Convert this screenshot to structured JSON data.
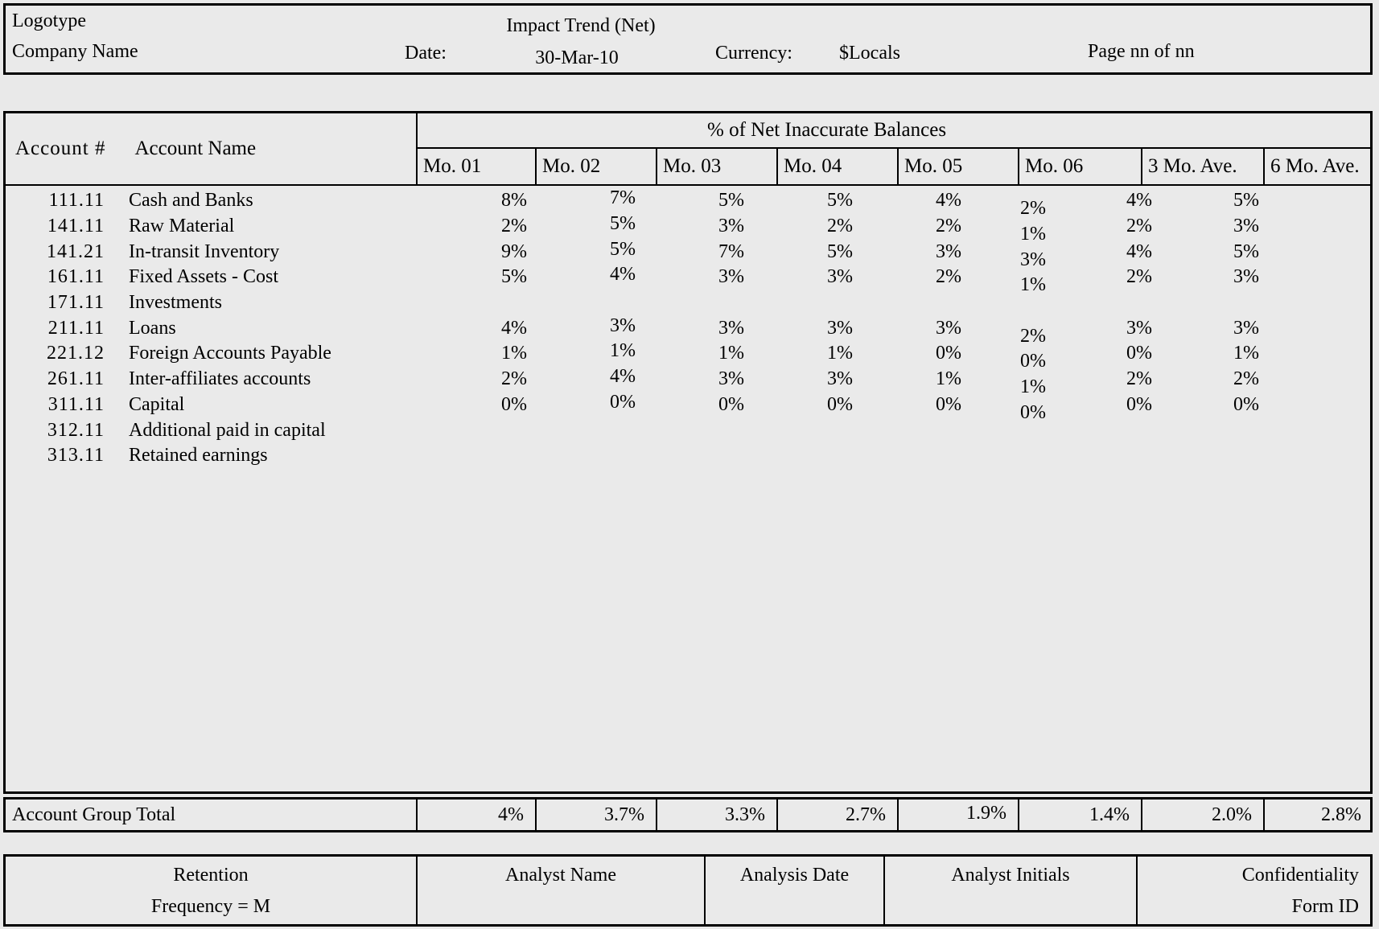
{
  "header": {
    "logotype": "Logotype",
    "company_name": "Company Name",
    "title": "Impact Trend (Net)",
    "date_label": "Date:",
    "date_value": "30-Mar-10",
    "currency_label": "Currency:",
    "currency_value": "$Locals",
    "page_label": "Page nn of nn"
  },
  "table": {
    "account_number_header": "Account #",
    "account_name_header": "Account Name",
    "group_header": "% of Net Inaccurate Balances",
    "month_headers": [
      "Mo. 01",
      "Mo. 02",
      "Mo. 03",
      "Mo. 04",
      "Mo. 05",
      "Mo. 06",
      "3 Mo. Ave.",
      "6 Mo. Ave."
    ],
    "rows": [
      {
        "account": "111.11",
        "name": "Cash and Banks",
        "values": [
          "8%",
          "7%",
          "5%",
          "5%",
          "4%",
          "2%",
          "4%",
          "5%"
        ]
      },
      {
        "account": "141.11",
        "name": "Raw Material",
        "values": [
          "2%",
          "5%",
          "3%",
          "2%",
          "2%",
          "1%",
          "2%",
          "3%"
        ]
      },
      {
        "account": "141.21",
        "name": "In-transit Inventory",
        "values": [
          "9%",
          "5%",
          "7%",
          "5%",
          "3%",
          "3%",
          "4%",
          "5%"
        ]
      },
      {
        "account": "161.11",
        "name": "Fixed Assets - Cost",
        "values": [
          "5%",
          "4%",
          "3%",
          "3%",
          "2%",
          "1%",
          "2%",
          "3%"
        ]
      },
      {
        "account": "171.11",
        "name": "Investments",
        "values": [
          "",
          "",
          "",
          "",
          "",
          "",
          "",
          ""
        ]
      },
      {
        "account": "211.11",
        "name": "Loans",
        "values": [
          "4%",
          "3%",
          "3%",
          "3%",
          "3%",
          "2%",
          "3%",
          "3%"
        ]
      },
      {
        "account": "221.12",
        "name": "Foreign Accounts Payable",
        "values": [
          "1%",
          "1%",
          "1%",
          "1%",
          "0%",
          "0%",
          "0%",
          "1%"
        ]
      },
      {
        "account": "261.11",
        "name": "Inter-affiliates accounts",
        "values": [
          "2%",
          "4%",
          "3%",
          "3%",
          "1%",
          "1%",
          "2%",
          "2%"
        ]
      },
      {
        "account": "311.11",
        "name": "Capital",
        "values": [
          "0%",
          "0%",
          "0%",
          "0%",
          "0%",
          "0%",
          "0%",
          "0%"
        ]
      },
      {
        "account": "312.11",
        "name": "Additional paid in capital",
        "values": [
          "",
          "",
          "",
          "",
          "",
          "",
          "",
          ""
        ]
      },
      {
        "account": "313.11",
        "name": "Retained earnings",
        "values": [
          "",
          "",
          "",
          "",
          "",
          "",
          "",
          ""
        ]
      }
    ],
    "total": {
      "label": "Account Group Total",
      "values": [
        "4%",
        "3.7%",
        "3.3%",
        "2.7%",
        "1.9%",
        "1.4%",
        "2.0%",
        "2.8%"
      ]
    }
  },
  "footer": {
    "retention_line1": "Retention",
    "retention_line2": "Frequency = M",
    "analyst_name": "Analyst Name",
    "analysis_date": "Analysis Date",
    "analyst_initials": "Analyst Initials",
    "confidentiality": "Confidentiality",
    "form_id": "Form ID"
  },
  "colors": {
    "background": "#e9e9e9",
    "border": "#000000",
    "text": "#000000"
  }
}
